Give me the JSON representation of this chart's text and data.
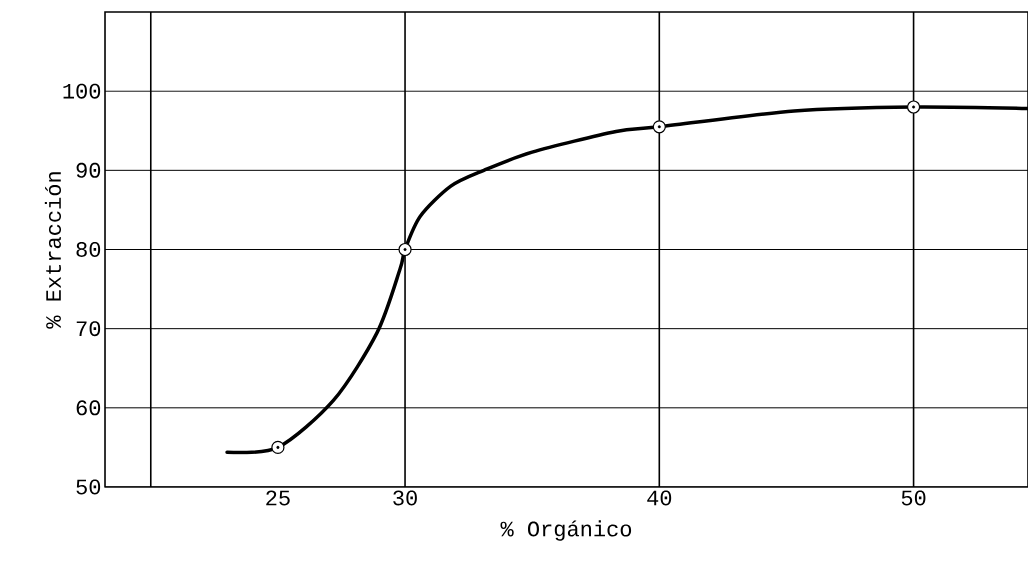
{
  "chart_data": {
    "type": "line",
    "xlabel": "% Orgánico",
    "ylabel": "% Extracción",
    "xlim": [
      18.2,
      54.5
    ],
    "ylim": [
      50,
      110
    ],
    "xticks": [
      25,
      30,
      40,
      50
    ],
    "yticks": [
      50,
      60,
      70,
      80,
      90,
      100
    ],
    "grid": "y",
    "ref_lines": [
      {
        "axis": "x",
        "value": 20,
        "color": "#000000"
      },
      {
        "axis": "x",
        "value": 30,
        "color": "#000000"
      },
      {
        "axis": "x",
        "value": 40,
        "color": "#000000"
      },
      {
        "axis": "x",
        "value": 50,
        "color": "#000000"
      }
    ],
    "series": [
      {
        "color": "#000000",
        "marker": "none",
        "x": [
          23.0,
          25,
          27.2,
          28.9,
          29.8,
          30,
          30.6,
          31.8,
          33.1,
          35.0,
          38.3,
          40,
          45.3,
          50,
          54.5
        ],
        "values": [
          54.4,
          55,
          61,
          69.5,
          77.5,
          80,
          84.2,
          88,
          90,
          92.3,
          94.9,
          95.5,
          97.5,
          98,
          97.8
        ]
      },
      {
        "type": "scatter",
        "color": "#000000",
        "marker": "circle",
        "x": [
          25,
          30,
          40,
          50
        ],
        "values": [
          55,
          80,
          95.5,
          98
        ]
      }
    ]
  }
}
